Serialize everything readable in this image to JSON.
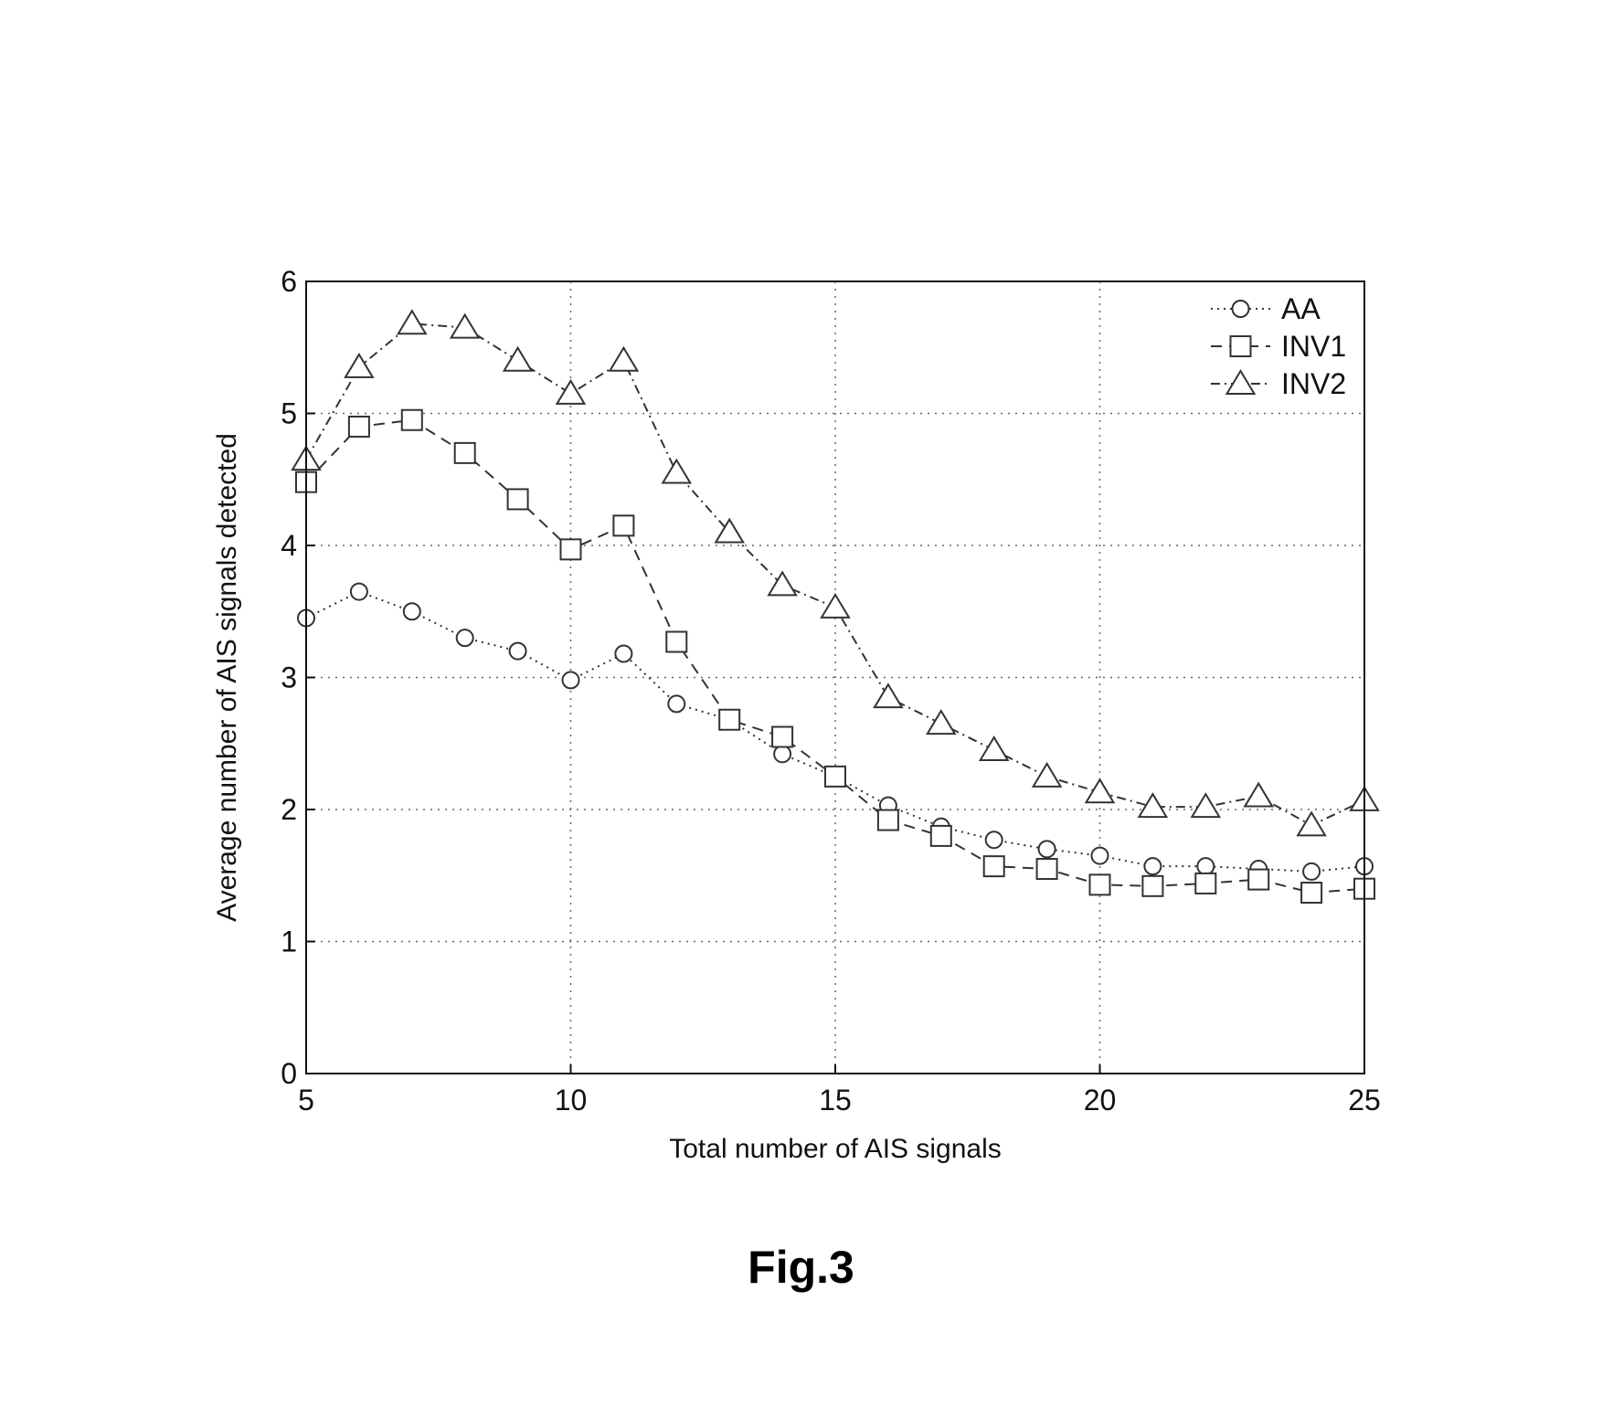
{
  "chart_data": {
    "type": "line",
    "xlabel": "Total number of AIS signals",
    "ylabel": "Average number of AIS signals detected",
    "xlim": [
      5,
      25
    ],
    "ylim": [
      0,
      6
    ],
    "xticks": [
      "5",
      "10",
      "15",
      "20",
      "25"
    ],
    "yticks": [
      "0",
      "1",
      "2",
      "3",
      "4",
      "5",
      "6"
    ],
    "grid": true,
    "legend_position": "top-right",
    "x": [
      5,
      6,
      7,
      8,
      9,
      10,
      11,
      12,
      13,
      14,
      15,
      16,
      17,
      18,
      19,
      20,
      21,
      22,
      23,
      24,
      25
    ],
    "series": [
      {
        "name": "AA",
        "marker": "circle",
        "line_style": "dotted",
        "values": [
          3.45,
          3.65,
          3.5,
          3.3,
          3.2,
          2.98,
          3.18,
          2.8,
          2.68,
          2.42,
          2.25,
          2.03,
          1.87,
          1.77,
          1.7,
          1.65,
          1.57,
          1.57,
          1.55,
          1.53,
          1.57
        ]
      },
      {
        "name": "INV1",
        "marker": "square",
        "line_style": "dashed",
        "values": [
          4.48,
          4.9,
          4.95,
          4.7,
          4.35,
          3.97,
          4.15,
          3.27,
          2.68,
          2.55,
          2.25,
          1.92,
          1.8,
          1.57,
          1.55,
          1.43,
          1.42,
          1.44,
          1.47,
          1.37,
          1.4
        ]
      },
      {
        "name": "INV2",
        "marker": "triangle",
        "line_style": "dash-dot",
        "values": [
          4.65,
          5.35,
          5.68,
          5.65,
          5.4,
          5.15,
          5.4,
          4.55,
          4.1,
          3.7,
          3.53,
          2.85,
          2.65,
          2.45,
          2.25,
          2.13,
          2.02,
          2.02,
          2.1,
          1.88,
          2.07
        ]
      }
    ],
    "colors": {
      "line": "#333333",
      "grid": "#666666",
      "axis": "#111111"
    }
  },
  "caption": "Fig.3"
}
